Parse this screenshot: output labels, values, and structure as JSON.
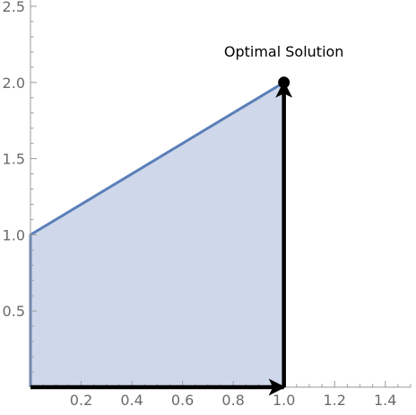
{
  "chart_data": {
    "type": "area",
    "title": "",
    "xlabel": "",
    "ylabel": "",
    "xlim": [
      0,
      1.5
    ],
    "ylim": [
      0,
      2.5
    ],
    "x_ticks": [
      0.2,
      0.4,
      0.6,
      0.8,
      1.0,
      1.2,
      1.4
    ],
    "x_tick_labels": [
      "0.2",
      "0.4",
      "0.6",
      "0.8",
      "1.0",
      "1.2",
      "1.4"
    ],
    "y_ticks": [
      0.5,
      1.0,
      1.5,
      2.0,
      2.5
    ],
    "y_tick_labels": [
      "0.5",
      "1.0",
      "1.5",
      "2.0",
      "2.5"
    ],
    "grid": false,
    "feasible_region": {
      "vertices": [
        [
          0,
          0
        ],
        [
          0,
          1
        ],
        [
          1,
          2
        ],
        [
          1,
          0
        ]
      ],
      "fill_color": "#cfd8ea",
      "edge_color": "#5b7fb8"
    },
    "path_arrows": [
      {
        "from": [
          0,
          0
        ],
        "to": [
          1,
          0
        ]
      },
      {
        "from": [
          1,
          0
        ],
        "to": [
          1,
          2
        ]
      }
    ],
    "optimal_point": {
      "x": 1,
      "y": 2,
      "label": "Optimal Solution"
    }
  },
  "colors": {
    "axis": "#9a9a9a",
    "arrow": "#000000",
    "point": "#000000"
  }
}
